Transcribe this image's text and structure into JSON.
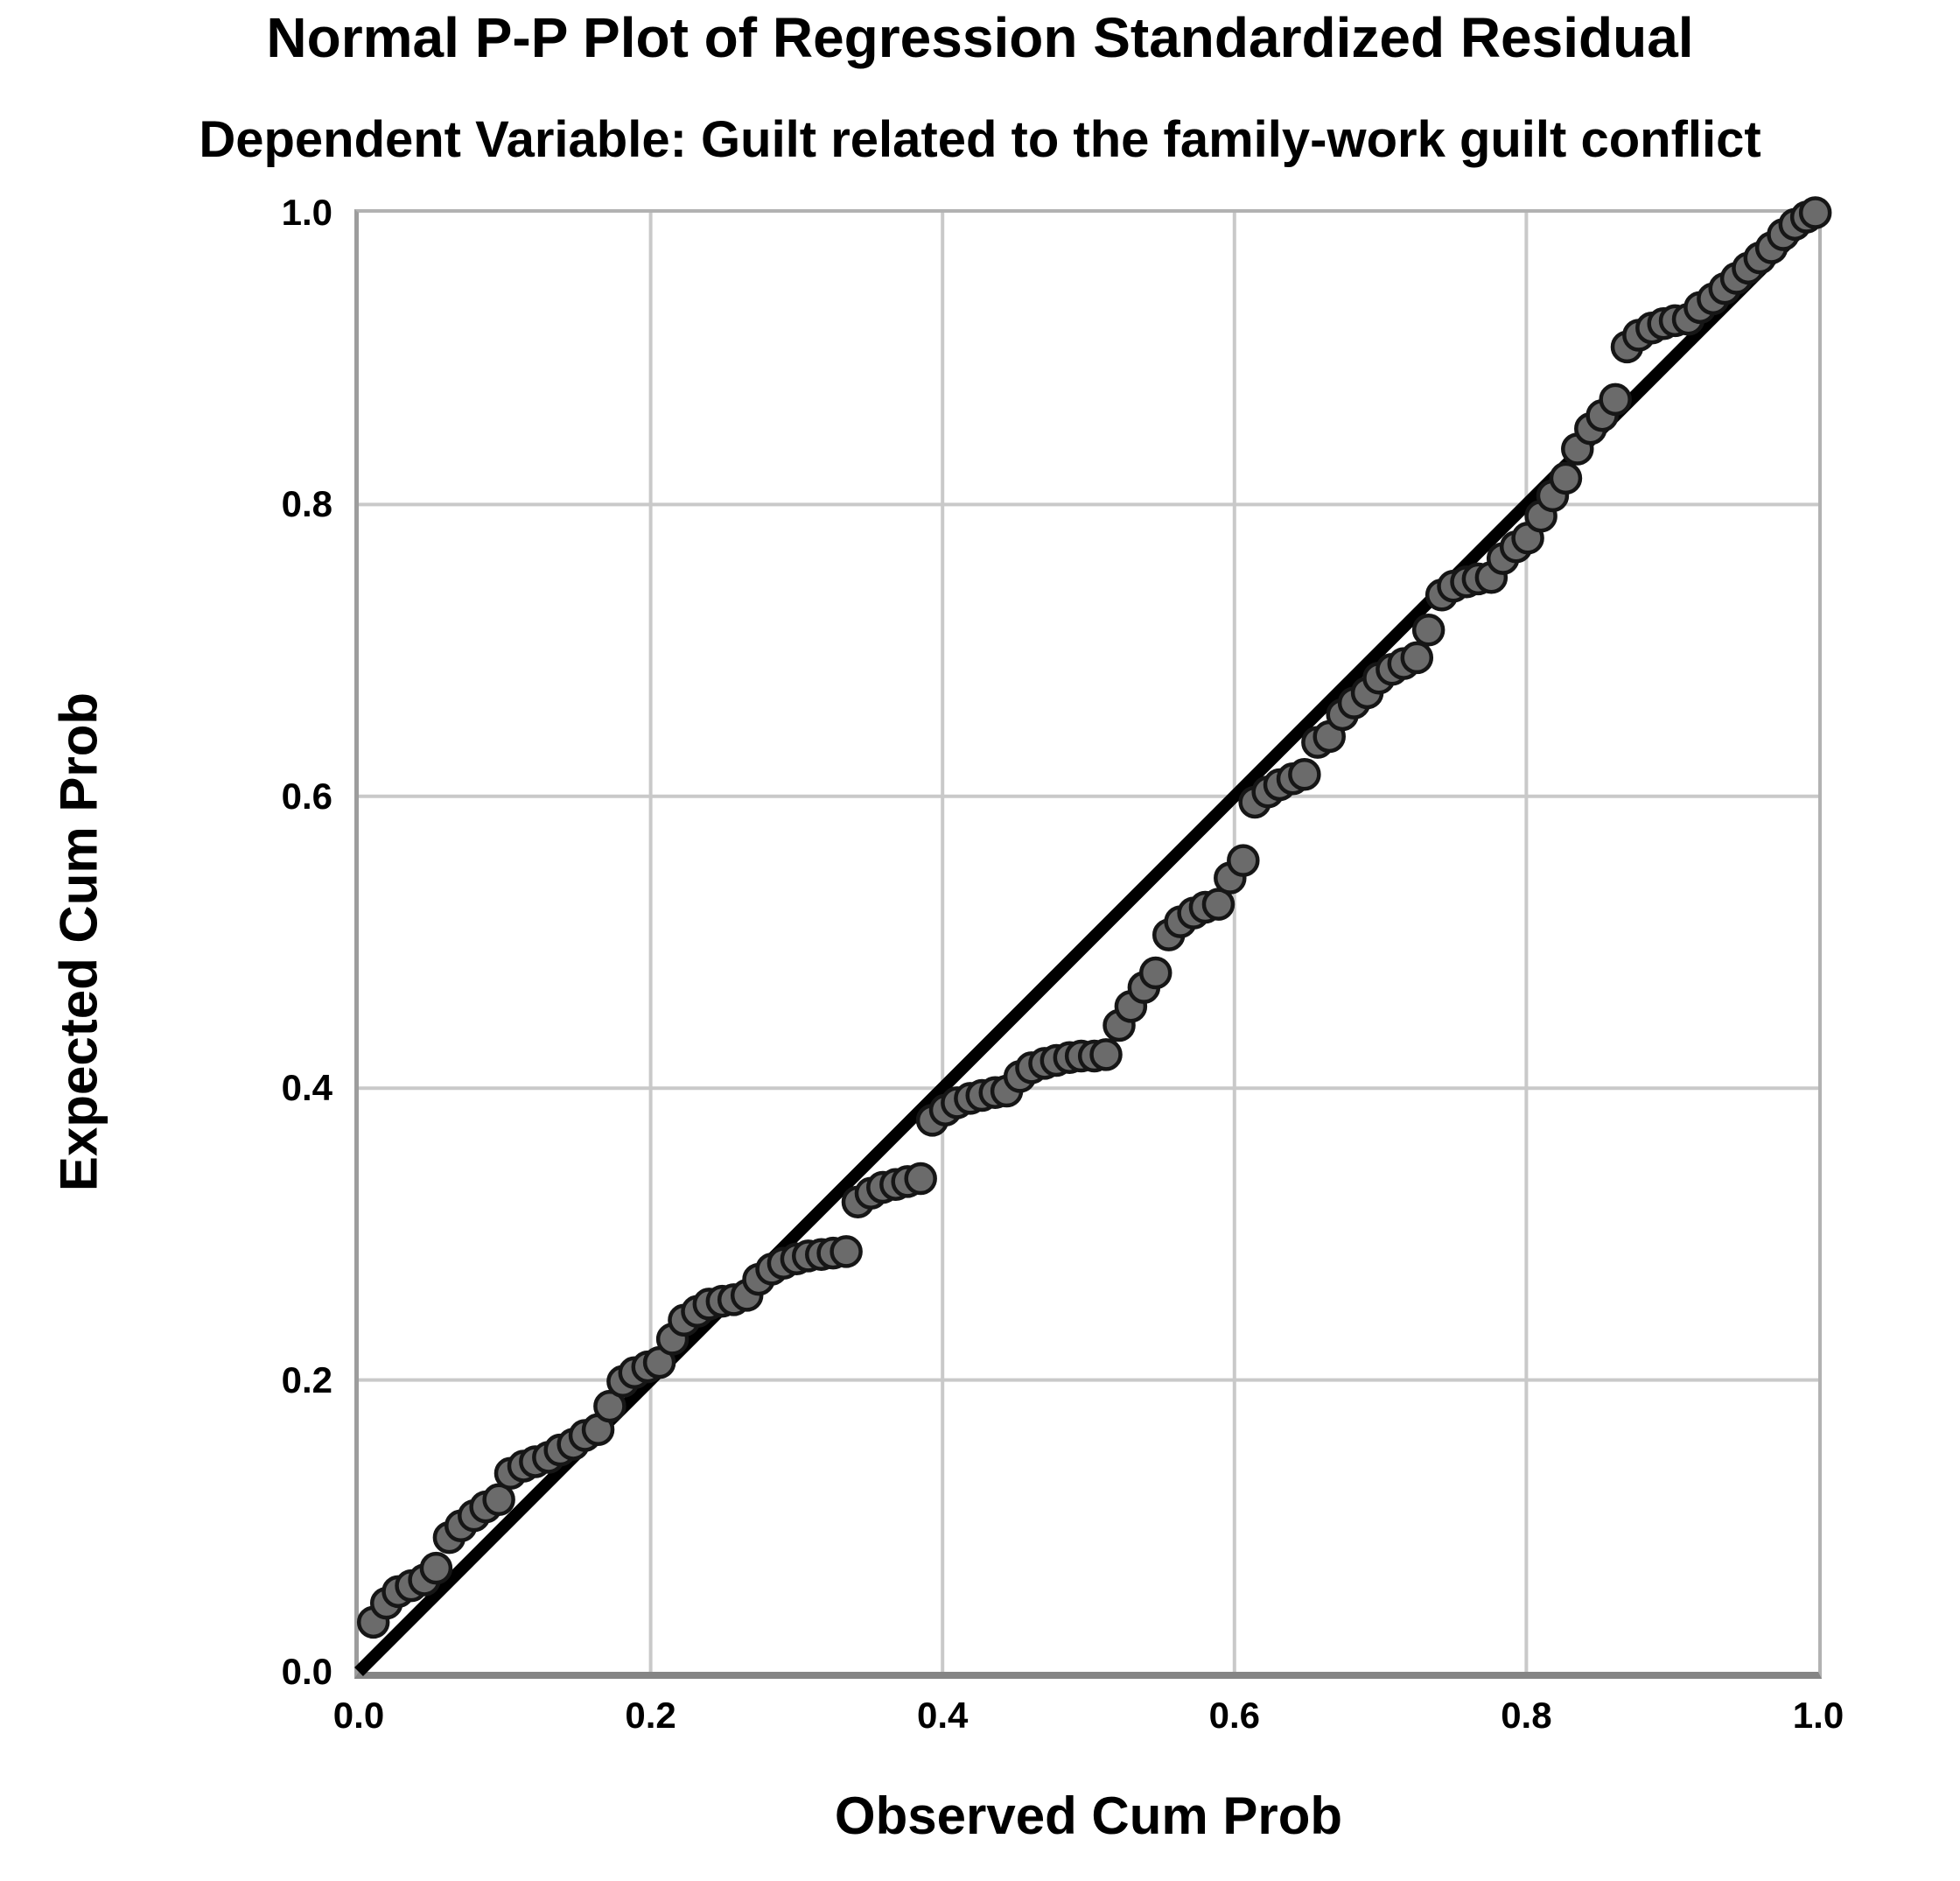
{
  "chart_data": {
    "type": "scatter",
    "title": "Normal P-P Plot of Regression Standardized Residual",
    "subtitle": "Dependent Variable: Guilt related to the family-work guilt conflict",
    "xlabel": "Observed Cum Prob",
    "ylabel": "Expected Cum Prob",
    "xlim": [
      0.0,
      1.0
    ],
    "ylim": [
      0.0,
      1.0
    ],
    "x_ticks": [
      "0.0",
      "0.2",
      "0.4",
      "0.6",
      "0.8",
      "1.0"
    ],
    "y_ticks": [
      "0.0",
      "0.2",
      "0.4",
      "0.6",
      "0.8",
      "1.0"
    ],
    "grid": true,
    "legend": "none",
    "reference_line": {
      "from": [
        0.0,
        0.0
      ],
      "to": [
        1.0,
        1.0
      ]
    },
    "colors": {
      "marker_fill": "#6b6b6b",
      "marker_stroke": "#161616",
      "reference_line": "#000000",
      "grid": "#c9c9c9",
      "frame": "#b2b2b2",
      "frame_bottom": "#858585",
      "text": "#000000",
      "background": "#ffffff"
    },
    "points": [
      [
        0.01,
        0.034
      ],
      [
        0.019,
        0.047
      ],
      [
        0.027,
        0.055
      ],
      [
        0.036,
        0.059
      ],
      [
        0.045,
        0.063
      ],
      [
        0.053,
        0.071
      ],
      [
        0.062,
        0.092
      ],
      [
        0.07,
        0.1
      ],
      [
        0.079,
        0.107
      ],
      [
        0.087,
        0.113
      ],
      [
        0.096,
        0.118
      ],
      [
        0.104,
        0.136
      ],
      [
        0.113,
        0.141
      ],
      [
        0.121,
        0.144
      ],
      [
        0.13,
        0.147
      ],
      [
        0.138,
        0.152
      ],
      [
        0.147,
        0.156
      ],
      [
        0.155,
        0.162
      ],
      [
        0.164,
        0.166
      ],
      [
        0.172,
        0.182
      ],
      [
        0.181,
        0.199
      ],
      [
        0.189,
        0.205
      ],
      [
        0.198,
        0.209
      ],
      [
        0.206,
        0.212
      ],
      [
        0.215,
        0.228
      ],
      [
        0.223,
        0.241
      ],
      [
        0.232,
        0.247
      ],
      [
        0.24,
        0.252
      ],
      [
        0.249,
        0.254
      ],
      [
        0.257,
        0.255
      ],
      [
        0.266,
        0.258
      ],
      [
        0.274,
        0.269
      ],
      [
        0.283,
        0.276
      ],
      [
        0.291,
        0.28
      ],
      [
        0.3,
        0.283
      ],
      [
        0.308,
        0.285
      ],
      [
        0.317,
        0.286
      ],
      [
        0.325,
        0.287
      ],
      [
        0.334,
        0.288
      ],
      [
        0.342,
        0.322
      ],
      [
        0.351,
        0.328
      ],
      [
        0.359,
        0.332
      ],
      [
        0.368,
        0.334
      ],
      [
        0.376,
        0.336
      ],
      [
        0.385,
        0.338
      ],
      [
        0.393,
        0.378
      ],
      [
        0.402,
        0.385
      ],
      [
        0.41,
        0.39
      ],
      [
        0.419,
        0.393
      ],
      [
        0.427,
        0.395
      ],
      [
        0.436,
        0.397
      ],
      [
        0.444,
        0.398
      ],
      [
        0.453,
        0.408
      ],
      [
        0.461,
        0.414
      ],
      [
        0.47,
        0.417
      ],
      [
        0.478,
        0.419
      ],
      [
        0.487,
        0.421
      ],
      [
        0.495,
        0.422
      ],
      [
        0.504,
        0.422
      ],
      [
        0.512,
        0.423
      ],
      [
        0.521,
        0.443
      ],
      [
        0.529,
        0.456
      ],
      [
        0.538,
        0.469
      ],
      [
        0.546,
        0.479
      ],
      [
        0.555,
        0.505
      ],
      [
        0.563,
        0.514
      ],
      [
        0.572,
        0.52
      ],
      [
        0.58,
        0.524
      ],
      [
        0.589,
        0.526
      ],
      [
        0.597,
        0.544
      ],
      [
        0.606,
        0.556
      ],
      [
        0.614,
        0.596
      ],
      [
        0.623,
        0.603
      ],
      [
        0.631,
        0.608
      ],
      [
        0.64,
        0.612
      ],
      [
        0.648,
        0.615
      ],
      [
        0.657,
        0.637
      ],
      [
        0.665,
        0.641
      ],
      [
        0.674,
        0.656
      ],
      [
        0.682,
        0.664
      ],
      [
        0.691,
        0.671
      ],
      [
        0.699,
        0.681
      ],
      [
        0.708,
        0.687
      ],
      [
        0.716,
        0.691
      ],
      [
        0.725,
        0.695
      ],
      [
        0.733,
        0.714
      ],
      [
        0.742,
        0.738
      ],
      [
        0.75,
        0.744
      ],
      [
        0.759,
        0.747
      ],
      [
        0.767,
        0.749
      ],
      [
        0.776,
        0.75
      ],
      [
        0.784,
        0.763
      ],
      [
        0.793,
        0.771
      ],
      [
        0.801,
        0.777
      ],
      [
        0.81,
        0.792
      ],
      [
        0.818,
        0.806
      ],
      [
        0.827,
        0.818
      ],
      [
        0.835,
        0.838
      ],
      [
        0.844,
        0.852
      ],
      [
        0.852,
        0.861
      ],
      [
        0.861,
        0.872
      ],
      [
        0.869,
        0.908
      ],
      [
        0.877,
        0.916
      ],
      [
        0.886,
        0.921
      ],
      [
        0.894,
        0.924
      ],
      [
        0.902,
        0.926
      ],
      [
        0.911,
        0.927
      ],
      [
        0.919,
        0.935
      ],
      [
        0.928,
        0.941
      ],
      [
        0.936,
        0.948
      ],
      [
        0.944,
        0.955
      ],
      [
        0.952,
        0.962
      ],
      [
        0.96,
        0.969
      ],
      [
        0.968,
        0.976
      ],
      [
        0.976,
        0.985
      ],
      [
        0.984,
        0.992
      ],
      [
        0.992,
        0.997
      ],
      [
        0.998,
        1.0
      ]
    ]
  }
}
